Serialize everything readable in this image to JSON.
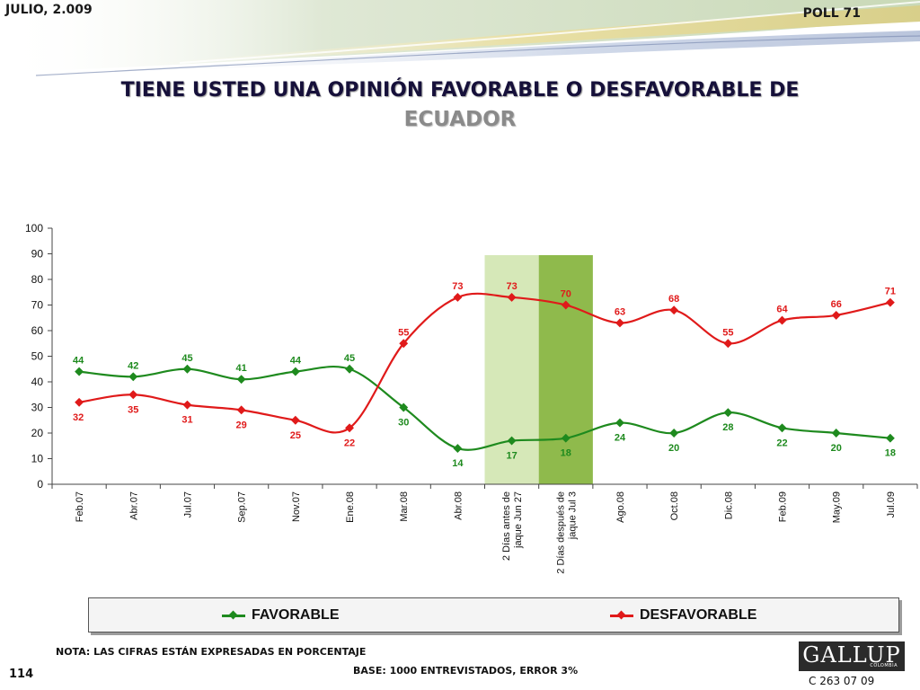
{
  "header": {
    "date": "JULIO, 2.009",
    "poll": "POLL 71",
    "title_line1": "TIENE USTED UNA OPINIÓN FAVORABLE O DESFAVORABLE DE",
    "title_line2": "ECUADOR"
  },
  "footer": {
    "note": "NOTA: LAS CIFRAS ESTÁN EXPRESADAS EN PORCENTAJE",
    "base": "BASE: 1000 ENTREVISTADOS, ERROR 3%",
    "page_number": "114",
    "logo": "GALLUP",
    "logo_sub": "COLOMBIA",
    "code": "C 263 07 09"
  },
  "colors": {
    "favorable": "#1e8a1e",
    "desfavorable": "#e01a1a",
    "highlight_light": "#d6e8b8",
    "highlight_dark": "#8fba4c"
  },
  "chart_data": {
    "type": "line",
    "title": "TIENE USTED UNA OPINIÓN FAVORABLE O DESFAVORABLE DE ECUADOR",
    "xlabel": "",
    "ylabel": "",
    "ylim": [
      0,
      100
    ],
    "yticks": [
      0,
      10,
      20,
      30,
      40,
      50,
      60,
      70,
      80,
      90,
      100
    ],
    "grid": false,
    "legend_position": "bottom",
    "categories": [
      "Feb.07",
      "Abr.07",
      "Jul.07",
      "Sep.07",
      "Nov.07",
      "Ene.08",
      "Mar.08",
      "Abr.08",
      [
        "2 Días antes de",
        "jaque Jun 27"
      ],
      [
        "2 Días después de",
        "jaque Jul 3"
      ],
      "Ago.08",
      "Oct.08",
      "Dic.08",
      "Feb.09",
      "May.09",
      "Jul.09"
    ],
    "highlighted_categories": [
      8,
      9
    ],
    "series": [
      {
        "name": "FAVORABLE",
        "values": [
          44,
          42,
          45,
          41,
          44,
          45,
          30,
          14,
          17,
          18,
          24,
          20,
          28,
          22,
          20,
          18
        ]
      },
      {
        "name": "DESFAVORABLE",
        "values": [
          32,
          35,
          31,
          29,
          25,
          22,
          55,
          73,
          73,
          70,
          63,
          68,
          55,
          64,
          66,
          71
        ]
      }
    ]
  }
}
